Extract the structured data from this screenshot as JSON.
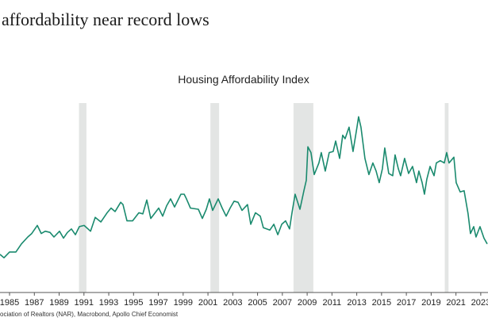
{
  "headline": "affordability near record lows",
  "source": "ociation of Realtors (NAR), Macrobond, Apollo Chief Economist",
  "chart_data": {
    "type": "line",
    "title": "Housing Affordability Index",
    "xlabel": "",
    "ylabel": "",
    "xlim": [
      1984.23,
      2023.52
    ],
    "ylim": [
      58,
      215
    ],
    "y_axis_labels_shown": false,
    "grid": false,
    "line_color": "#1a8a6e",
    "recession_color": "#e3e5e4",
    "x_ticks": [
      "1985",
      "1987",
      "1989",
      "1991",
      "1993",
      "1995",
      "1997",
      "1999",
      "2001",
      "2003",
      "2005",
      "2007",
      "2009",
      "2011",
      "2013",
      "2015",
      "2017",
      "2019",
      "2021",
      "2023"
    ],
    "recessions": [
      [
        1990.6,
        1991.2
      ],
      [
        2001.2,
        2001.9
      ],
      [
        2007.9,
        2009.5
      ],
      [
        2020.1,
        2020.4
      ]
    ],
    "series": [
      {
        "x": [
          1984.23,
          1984.55,
          1985.0,
          1985.51,
          1985.96,
          1986.47,
          1986.79,
          1987.24,
          1987.56,
          1987.88,
          1988.26,
          1988.58,
          1989.03,
          1989.35,
          1989.67,
          1989.99,
          1990.31,
          1990.63,
          1991.01,
          1991.53,
          1991.91,
          1992.36,
          1992.87,
          1993.19,
          1993.51,
          1993.96,
          1994.15,
          1994.47,
          1994.92,
          1995.43,
          1995.75,
          1996.07,
          1996.39,
          1997.03,
          1997.35,
          1997.67,
          1997.99,
          1998.31,
          1998.82,
          1999.08,
          1999.27,
          1999.59,
          2000.23,
          2000.55,
          2000.87,
          2001.12,
          2001.38,
          2001.83,
          2002.15,
          2002.47,
          2002.79,
          2003.11,
          2003.43,
          2003.75,
          2004.19,
          2004.45,
          2004.83,
          2005.22,
          2005.47,
          2005.99,
          2006.31,
          2006.63,
          2006.95,
          2007.26,
          2007.58,
          2007.78,
          2008.03,
          2008.42,
          2008.74,
          2008.93,
          2009.06,
          2009.31,
          2009.57,
          2009.95,
          2010.14,
          2010.46,
          2010.78,
          2011.1,
          2011.3,
          2011.62,
          2011.87,
          2012.06,
          2012.38,
          2012.7,
          2013.02,
          2013.15,
          2013.34,
          2013.66,
          2013.98,
          2014.3,
          2014.56,
          2014.81,
          2015.07,
          2015.26,
          2015.58,
          2015.9,
          2016.09,
          2016.35,
          2016.54,
          2016.86,
          2017.18,
          2017.5,
          2017.82,
          2018.01,
          2018.27,
          2018.46,
          2018.65,
          2018.91,
          2019.23,
          2019.42,
          2019.74,
          2020.06,
          2020.25,
          2020.44,
          2020.83,
          2021.02,
          2021.34,
          2021.66,
          2021.98,
          2022.17,
          2022.43,
          2022.62,
          2022.94,
          2023.26,
          2023.52
        ],
        "values": [
          91,
          88,
          93,
          93,
          100,
          106,
          109,
          116,
          109,
          111,
          110,
          106,
          111,
          105,
          110,
          113,
          108,
          115,
          116,
          111,
          123,
          119,
          127,
          131,
          128,
          136,
          134,
          120,
          120,
          127,
          126,
          138,
          122,
          131,
          124,
          133,
          139,
          132,
          143,
          143,
          139,
          131,
          130,
          122,
          130,
          139,
          129,
          139,
          131,
          124,
          131,
          137,
          136,
          129,
          134,
          117,
          127,
          124,
          114,
          112,
          117,
          108,
          117,
          120,
          113,
          127,
          143,
          130,
          146,
          155,
          184,
          179,
          160,
          170,
          179,
          163,
          179,
          180,
          189,
          174,
          194,
          191,
          201,
          180,
          201,
          210,
          201,
          174,
          160,
          170,
          163,
          153,
          165,
          183,
          161,
          159,
          177,
          165,
          159,
          174,
          161,
          167,
          153,
          163,
          153,
          143,
          156,
          167,
          159,
          170,
          172,
          170,
          179,
          170,
          175,
          153,
          145,
          146,
          126,
          109,
          115,
          106,
          115,
          105,
          100
        ]
      }
    ]
  }
}
